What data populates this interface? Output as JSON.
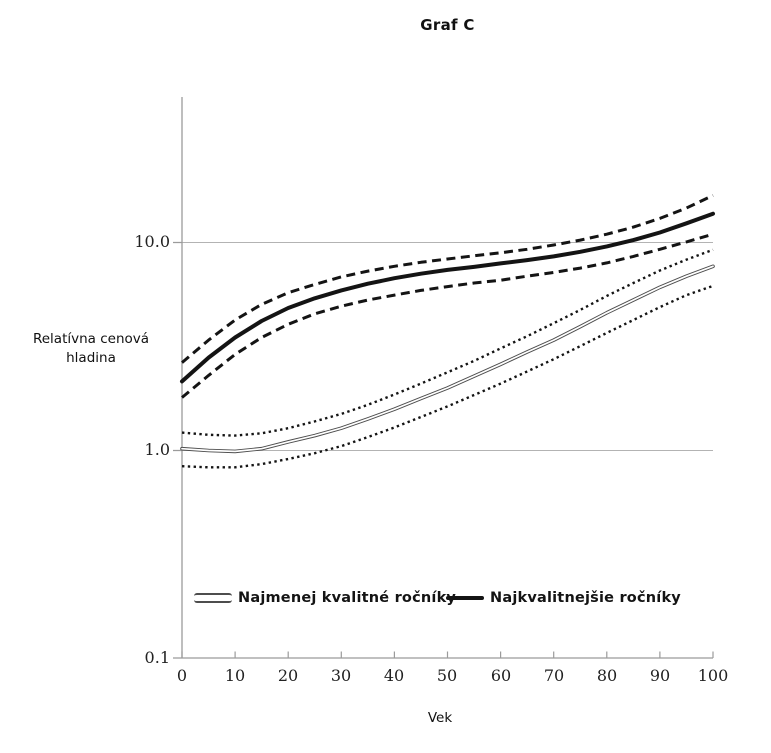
{
  "title": "Graf C",
  "y_axis": {
    "label_line1": "Relatívna cenová",
    "label_line2": "hladina",
    "ticks": [
      "10.0",
      "1.0",
      "0.1"
    ]
  },
  "x_axis": {
    "label": "Vek",
    "ticks": [
      "0",
      "10",
      "20",
      "30",
      "40",
      "50",
      "60",
      "70",
      "80",
      "90",
      "100"
    ]
  },
  "legend": {
    "items": [
      {
        "label": "Najmenej kvalitné ročníky",
        "swatch": "thin-double-gray-line"
      },
      {
        "label": "Najkvalitnejšie ročníky",
        "swatch": "thick-black-line"
      }
    ]
  },
  "colors": {
    "line_black": "#141414",
    "line_gray": "#4d4d4d",
    "gridline": "#b3b3b3",
    "axis": "#9b9b9b",
    "background": "#ffffff"
  },
  "chart_data": {
    "type": "line",
    "title": "Graf C",
    "xlabel": "Vek",
    "ylabel": "Relatívna cenová hladina",
    "y_scale": "log10",
    "y_ticks": [
      0.1,
      1.0,
      10.0
    ],
    "ylim": [
      0.1,
      50
    ],
    "x_range": [
      0,
      100
    ],
    "grid": "horizontal gridlines at y=1.0 and y=10.0",
    "legend_position": "bottom-inside",
    "x": [
      0,
      5,
      10,
      15,
      20,
      25,
      30,
      35,
      40,
      45,
      50,
      55,
      60,
      65,
      70,
      75,
      80,
      85,
      90,
      95,
      100
    ],
    "series": [
      {
        "name": "Najkvalitnejšie ročníky",
        "style": "thick-solid-black",
        "values": [
          2.15,
          2.8,
          3.5,
          4.2,
          4.85,
          5.4,
          5.9,
          6.35,
          6.75,
          7.1,
          7.4,
          7.65,
          7.95,
          8.25,
          8.6,
          9.05,
          9.6,
          10.3,
          11.2,
          12.4,
          13.8
        ]
      },
      {
        "name": "Najkvalitnejšie ročníky — upper band",
        "style": "dashed-black",
        "values": [
          2.65,
          3.4,
          4.25,
          5.05,
          5.75,
          6.3,
          6.85,
          7.3,
          7.7,
          8.05,
          8.35,
          8.65,
          8.95,
          9.3,
          9.75,
          10.3,
          11.0,
          11.9,
          13.1,
          14.7,
          16.9
        ]
      },
      {
        "name": "Najkvalitnejšie ročníky — lower band",
        "style": "dashed-black",
        "values": [
          1.8,
          2.3,
          2.9,
          3.5,
          4.05,
          4.55,
          4.95,
          5.3,
          5.6,
          5.9,
          6.15,
          6.4,
          6.6,
          6.9,
          7.2,
          7.55,
          8.0,
          8.6,
          9.3,
          10.1,
          11.0
        ]
      },
      {
        "name": "Najmenej kvalitné ročníky",
        "style": "thin-double-gray",
        "values": [
          1.02,
          1.0,
          0.99,
          1.02,
          1.1,
          1.18,
          1.28,
          1.42,
          1.58,
          1.78,
          2.0,
          2.28,
          2.6,
          2.98,
          3.4,
          3.95,
          4.6,
          5.3,
          6.1,
          6.9,
          7.7
        ]
      },
      {
        "name": "Najmenej kvalitné ročníky — upper band",
        "style": "dotted-black",
        "values": [
          1.22,
          1.19,
          1.18,
          1.21,
          1.28,
          1.38,
          1.5,
          1.66,
          1.86,
          2.1,
          2.38,
          2.7,
          3.1,
          3.55,
          4.1,
          4.75,
          5.55,
          6.4,
          7.35,
          8.3,
          9.25
        ]
      },
      {
        "name": "Najmenej kvalitné ročníky — lower band",
        "style": "dotted-black",
        "values": [
          0.84,
          0.83,
          0.83,
          0.86,
          0.91,
          0.97,
          1.05,
          1.16,
          1.29,
          1.45,
          1.63,
          1.85,
          2.1,
          2.4,
          2.75,
          3.18,
          3.68,
          4.25,
          4.9,
          5.6,
          6.2
        ]
      }
    ]
  }
}
